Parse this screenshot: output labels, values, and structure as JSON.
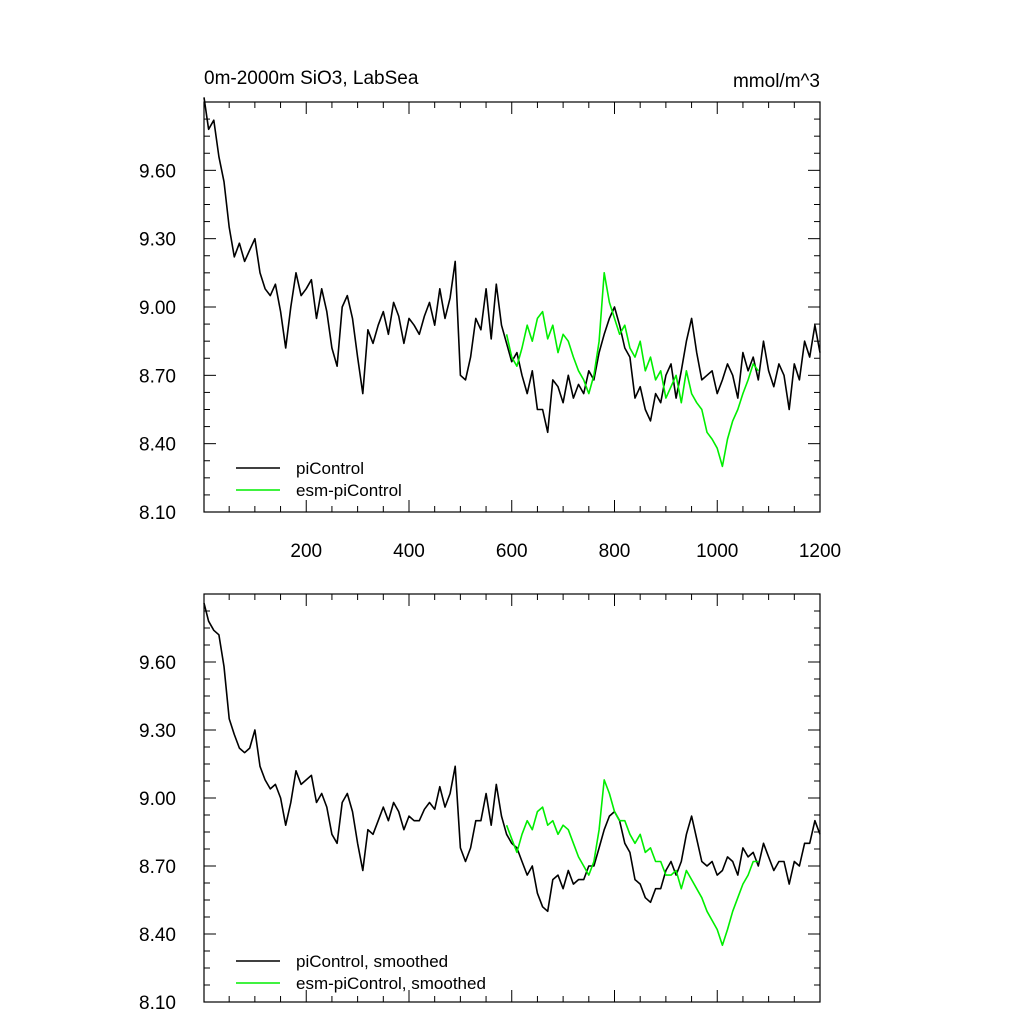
{
  "header": {
    "title": "0m-2000m SiO3, LabSea",
    "units": "mmol/m^3"
  },
  "colors": {
    "axes": "#000000",
    "piControl": "#000000",
    "esm_piControl": "#00ee00",
    "background": "#ffffff"
  },
  "chart_data": [
    {
      "type": "line",
      "title": "0m-2000m SiO3, LabSea",
      "units": "mmol/m^3",
      "xlim": [
        1,
        1200
      ],
      "ylim": [
        8.1,
        9.9
      ],
      "x_ticks": [
        200,
        400,
        600,
        800,
        1000,
        1200
      ],
      "x_tick_labels": [
        "200",
        "400",
        "600",
        "800",
        "1000",
        "1200"
      ],
      "y_ticks": [
        8.1,
        8.4,
        8.7,
        9.0,
        9.3,
        9.6
      ],
      "y_tick_labels": [
        "8.10",
        "8.40",
        "8.70",
        "9.00",
        "9.30",
        "9.60"
      ],
      "legend_position": "bottom-left",
      "grid": false,
      "series": [
        {
          "name": "piControl",
          "color": "#000000",
          "x": [
            1,
            10,
            20,
            30,
            40,
            50,
            60,
            70,
            80,
            90,
            100,
            110,
            120,
            130,
            140,
            150,
            160,
            170,
            180,
            190,
            200,
            210,
            220,
            230,
            240,
            250,
            260,
            270,
            280,
            290,
            300,
            310,
            320,
            330,
            340,
            350,
            360,
            370,
            380,
            390,
            400,
            410,
            420,
            430,
            440,
            450,
            460,
            470,
            480,
            490,
            500,
            510,
            520,
            530,
            540,
            550,
            560,
            570,
            580,
            590,
            600,
            610,
            620,
            630,
            640,
            650,
            660,
            670,
            680,
            690,
            700,
            710,
            720,
            730,
            740,
            750,
            760,
            770,
            780,
            790,
            800,
            810,
            820,
            830,
            840,
            850,
            860,
            870,
            880,
            890,
            900,
            910,
            920,
            930,
            940,
            950,
            960,
            970,
            980,
            990,
            1000,
            1010,
            1020,
            1030,
            1040,
            1050,
            1060,
            1070,
            1080,
            1090,
            1100,
            1110,
            1120,
            1130,
            1140,
            1150,
            1160,
            1170,
            1180,
            1190,
            1200
          ],
          "values": [
            9.92,
            9.78,
            9.82,
            9.66,
            9.55,
            9.35,
            9.22,
            9.28,
            9.2,
            9.25,
            9.3,
            9.15,
            9.08,
            9.05,
            9.1,
            8.98,
            8.82,
            9.0,
            9.15,
            9.05,
            9.08,
            9.12,
            8.95,
            9.08,
            8.98,
            8.82,
            8.74,
            9.0,
            9.05,
            8.95,
            8.78,
            8.62,
            8.9,
            8.84,
            8.92,
            8.98,
            8.88,
            9.02,
            8.96,
            8.84,
            8.95,
            8.92,
            8.88,
            8.96,
            9.02,
            8.92,
            9.08,
            8.95,
            9.04,
            9.2,
            8.7,
            8.68,
            8.78,
            8.95,
            8.9,
            9.08,
            8.86,
            9.1,
            8.92,
            8.84,
            8.76,
            8.8,
            8.7,
            8.62,
            8.72,
            8.55,
            8.55,
            8.45,
            8.68,
            8.65,
            8.58,
            8.7,
            8.6,
            8.66,
            8.62,
            8.72,
            8.68,
            8.8,
            8.88,
            8.95,
            9.0,
            8.92,
            8.82,
            8.78,
            8.6,
            8.65,
            8.55,
            8.5,
            8.62,
            8.58,
            8.7,
            8.75,
            8.6,
            8.72,
            8.85,
            8.95,
            8.8,
            8.68,
            8.7,
            8.72,
            8.62,
            8.68,
            8.75,
            8.7,
            8.6,
            8.8,
            8.72,
            8.78,
            8.68,
            8.85,
            8.72,
            8.65,
            8.75,
            8.7,
            8.55,
            8.75,
            8.68,
            8.85,
            8.78,
            8.92,
            8.8
          ]
        },
        {
          "name": "esm-piControl",
          "color": "#00ee00",
          "x": [
            590,
            600,
            610,
            620,
            630,
            640,
            650,
            660,
            670,
            680,
            690,
            700,
            710,
            720,
            730,
            740,
            750,
            760,
            770,
            780,
            790,
            800,
            810,
            820,
            830,
            840,
            850,
            860,
            870,
            880,
            890,
            900,
            910,
            920,
            930,
            940,
            950,
            960,
            970,
            980,
            990,
            1000,
            1010,
            1020,
            1030,
            1040,
            1050,
            1060,
            1070,
            1080
          ],
          "values": [
            8.88,
            8.78,
            8.74,
            8.82,
            8.92,
            8.85,
            8.95,
            8.98,
            8.86,
            8.92,
            8.8,
            8.88,
            8.85,
            8.78,
            8.72,
            8.68,
            8.62,
            8.7,
            8.85,
            9.15,
            9.02,
            8.95,
            8.88,
            8.92,
            8.82,
            8.78,
            8.85,
            8.72,
            8.78,
            8.68,
            8.72,
            8.6,
            8.65,
            8.7,
            8.58,
            8.72,
            8.62,
            8.58,
            8.55,
            8.45,
            8.42,
            8.38,
            8.3,
            8.42,
            8.5,
            8.55,
            8.62,
            8.68,
            8.75,
            8.72
          ]
        }
      ]
    },
    {
      "type": "line",
      "xlim": [
        1,
        1200
      ],
      "ylim": [
        8.1,
        9.9
      ],
      "y_ticks": [
        8.1,
        8.4,
        8.7,
        9.0,
        9.3,
        9.6
      ],
      "y_tick_labels": [
        "8.10",
        "8.40",
        "8.70",
        "9.00",
        "9.30",
        "9.60"
      ],
      "legend_position": "bottom-left",
      "grid": false,
      "series": [
        {
          "name": "piControl, smoothed",
          "color": "#000000",
          "x": [
            1,
            10,
            20,
            30,
            40,
            50,
            60,
            70,
            80,
            90,
            100,
            110,
            120,
            130,
            140,
            150,
            160,
            170,
            180,
            190,
            200,
            210,
            220,
            230,
            240,
            250,
            260,
            270,
            280,
            290,
            300,
            310,
            320,
            330,
            340,
            350,
            360,
            370,
            380,
            390,
            400,
            410,
            420,
            430,
            440,
            450,
            460,
            470,
            480,
            490,
            500,
            510,
            520,
            530,
            540,
            550,
            560,
            570,
            580,
            590,
            600,
            610,
            620,
            630,
            640,
            650,
            660,
            670,
            680,
            690,
            700,
            710,
            720,
            730,
            740,
            750,
            760,
            770,
            780,
            790,
            800,
            810,
            820,
            830,
            840,
            850,
            860,
            870,
            880,
            890,
            900,
            910,
            920,
            930,
            940,
            950,
            960,
            970,
            980,
            990,
            1000,
            1010,
            1020,
            1030,
            1040,
            1050,
            1060,
            1070,
            1080,
            1090,
            1100,
            1110,
            1120,
            1130,
            1140,
            1150,
            1160,
            1170,
            1180,
            1190,
            1200
          ],
          "values": [
            9.86,
            9.78,
            9.74,
            9.72,
            9.58,
            9.35,
            9.28,
            9.22,
            9.2,
            9.22,
            9.3,
            9.14,
            9.08,
            9.04,
            9.06,
            9.0,
            8.88,
            8.98,
            9.12,
            9.06,
            9.08,
            9.1,
            8.98,
            9.02,
            8.96,
            8.84,
            8.8,
            8.98,
            9.02,
            8.94,
            8.8,
            8.68,
            8.86,
            8.84,
            8.9,
            8.96,
            8.9,
            8.98,
            8.94,
            8.86,
            8.92,
            8.9,
            8.9,
            8.95,
            8.98,
            8.95,
            9.05,
            8.96,
            9.02,
            9.14,
            8.78,
            8.72,
            8.78,
            8.9,
            8.9,
            9.02,
            8.88,
            9.06,
            8.92,
            8.84,
            8.8,
            8.78,
            8.72,
            8.66,
            8.7,
            8.58,
            8.52,
            8.5,
            8.64,
            8.66,
            8.6,
            8.68,
            8.62,
            8.64,
            8.64,
            8.7,
            8.7,
            8.78,
            8.86,
            8.92,
            8.94,
            8.9,
            8.8,
            8.76,
            8.64,
            8.62,
            8.56,
            8.54,
            8.6,
            8.6,
            8.68,
            8.72,
            8.66,
            8.72,
            8.84,
            8.92,
            8.82,
            8.72,
            8.7,
            8.72,
            8.66,
            8.68,
            8.74,
            8.72,
            8.66,
            8.78,
            8.74,
            8.76,
            8.7,
            8.8,
            8.74,
            8.68,
            8.72,
            8.72,
            8.62,
            8.72,
            8.7,
            8.8,
            8.8,
            8.9,
            8.84
          ]
        },
        {
          "name": "esm-piControl, smoothed",
          "color": "#00ee00",
          "x": [
            590,
            600,
            610,
            620,
            630,
            640,
            650,
            660,
            670,
            680,
            690,
            700,
            710,
            720,
            730,
            740,
            750,
            760,
            770,
            780,
            790,
            800,
            810,
            820,
            830,
            840,
            850,
            860,
            870,
            880,
            890,
            900,
            910,
            920,
            930,
            940,
            950,
            960,
            970,
            980,
            990,
            1000,
            1010,
            1020,
            1030,
            1040,
            1050,
            1060,
            1070,
            1080
          ],
          "values": [
            8.88,
            8.82,
            8.76,
            8.84,
            8.9,
            8.86,
            8.94,
            8.96,
            8.88,
            8.9,
            8.84,
            8.88,
            8.86,
            8.8,
            8.74,
            8.7,
            8.66,
            8.72,
            8.86,
            9.08,
            9.02,
            8.94,
            8.9,
            8.9,
            8.84,
            8.8,
            8.84,
            8.76,
            8.78,
            8.72,
            8.72,
            8.66,
            8.66,
            8.68,
            8.6,
            8.68,
            8.64,
            8.6,
            8.56,
            8.5,
            8.46,
            8.42,
            8.35,
            8.42,
            8.5,
            8.56,
            8.62,
            8.66,
            8.72,
            8.72
          ]
        }
      ]
    }
  ]
}
